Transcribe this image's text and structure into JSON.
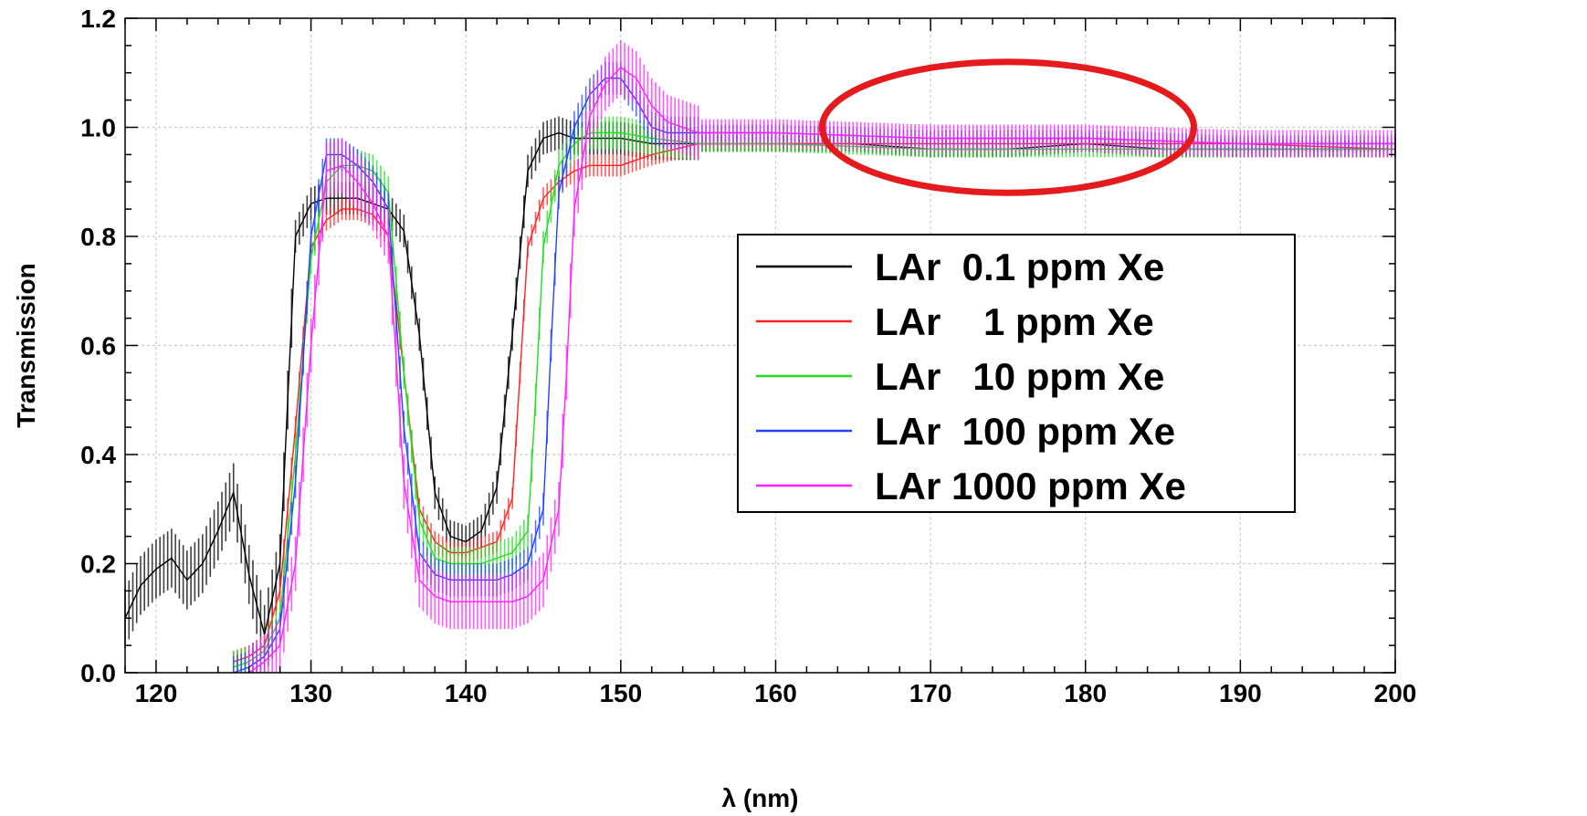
{
  "chart_data": {
    "type": "line",
    "title": "",
    "xlabel": "λ (nm)",
    "ylabel": "Transmission",
    "xlim": [
      118,
      200
    ],
    "ylim": [
      0.0,
      1.2
    ],
    "xticks": [
      120,
      130,
      140,
      150,
      160,
      170,
      180,
      190,
      200
    ],
    "xtick_labels": [
      "120",
      "130",
      "140",
      "150",
      "160",
      "170",
      "180",
      "190",
      "200"
    ],
    "yticks": [
      0.0,
      0.2,
      0.4,
      0.6,
      0.8,
      1.0,
      1.2
    ],
    "ytick_labels": [
      "0.0",
      "0.2",
      "0.4",
      "0.6",
      "0.8",
      "1.0",
      "1.2"
    ],
    "grid": true,
    "legend_position": "center-right",
    "annotation": {
      "shape": "ellipse",
      "color": "#e41a1c",
      "x_range": [
        163,
        187
      ],
      "y_range": [
        0.88,
        1.12
      ]
    },
    "series": [
      {
        "name": "LAr  0.1 ppm Xe",
        "color": "#000000",
        "error": 0.03,
        "x": [
          118,
          119,
          120,
          121,
          122,
          123,
          124,
          125,
          126,
          127,
          128,
          128.5,
          129,
          130,
          131,
          132,
          133,
          134,
          135,
          136,
          137,
          138,
          139,
          140,
          141,
          142,
          143,
          144,
          145,
          146,
          147,
          148,
          150,
          152,
          155,
          160,
          165,
          170,
          175,
          180,
          185,
          190,
          195,
          200
        ],
        "y": [
          0.1,
          0.16,
          0.19,
          0.21,
          0.17,
          0.2,
          0.26,
          0.33,
          0.18,
          0.07,
          0.2,
          0.5,
          0.8,
          0.86,
          0.87,
          0.87,
          0.87,
          0.86,
          0.85,
          0.81,
          0.62,
          0.33,
          0.25,
          0.24,
          0.26,
          0.34,
          0.62,
          0.92,
          0.98,
          0.99,
          0.98,
          0.98,
          0.98,
          0.97,
          0.97,
          0.97,
          0.97,
          0.96,
          0.96,
          0.97,
          0.96,
          0.96,
          0.96,
          0.96
        ]
      },
      {
        "name": "LAr    1 ppm Xe",
        "color": "#ff2222",
        "error": 0.02,
        "x": [
          125,
          126,
          127,
          128,
          129,
          130,
          131,
          132,
          133,
          134,
          135,
          136,
          137,
          138,
          139,
          140,
          141,
          142,
          143,
          143.5,
          144,
          145,
          146,
          147,
          148,
          150,
          152,
          155,
          160,
          170,
          180,
          190,
          200
        ],
        "y": [
          0.02,
          0.03,
          0.05,
          0.15,
          0.45,
          0.78,
          0.83,
          0.85,
          0.85,
          0.84,
          0.8,
          0.55,
          0.3,
          0.24,
          0.22,
          0.22,
          0.23,
          0.24,
          0.32,
          0.55,
          0.78,
          0.87,
          0.9,
          0.92,
          0.93,
          0.93,
          0.95,
          0.97,
          0.97,
          0.97,
          0.97,
          0.97,
          0.96
        ]
      },
      {
        "name": "LAr   10 ppm Xe",
        "color": "#22dd22",
        "error": 0.03,
        "x": [
          125,
          126,
          127,
          128,
          129,
          130,
          131,
          132,
          133,
          134,
          135,
          136,
          137,
          138,
          139,
          140,
          141,
          142,
          143,
          144,
          144.5,
          145,
          146,
          147,
          148,
          150,
          152,
          155,
          160,
          170,
          180,
          190,
          200
        ],
        "y": [
          0.01,
          0.02,
          0.04,
          0.1,
          0.4,
          0.76,
          0.9,
          0.93,
          0.93,
          0.92,
          0.88,
          0.55,
          0.28,
          0.21,
          0.2,
          0.2,
          0.2,
          0.21,
          0.22,
          0.26,
          0.5,
          0.78,
          0.93,
          0.97,
          0.99,
          0.99,
          0.98,
          0.97,
          0.97,
          0.96,
          0.96,
          0.96,
          0.96
        ]
      },
      {
        "name": "LAr  100 ppm Xe",
        "color": "#2244ff",
        "error": 0.03,
        "x": [
          125,
          126,
          127,
          128,
          129,
          130,
          131,
          132,
          133,
          134,
          135,
          136,
          137,
          138,
          139,
          140,
          141,
          142,
          143,
          144,
          145,
          145.5,
          146,
          147,
          148,
          149,
          150,
          151,
          152,
          153,
          155,
          160,
          170,
          180,
          190,
          200
        ],
        "y": [
          0.0,
          0.01,
          0.03,
          0.08,
          0.35,
          0.8,
          0.95,
          0.95,
          0.93,
          0.9,
          0.85,
          0.45,
          0.22,
          0.18,
          0.17,
          0.17,
          0.17,
          0.17,
          0.18,
          0.2,
          0.3,
          0.6,
          0.88,
          1.0,
          1.06,
          1.09,
          1.09,
          1.05,
          1.0,
          0.99,
          0.99,
          0.99,
          0.98,
          0.98,
          0.97,
          0.97
        ]
      },
      {
        "name": "LAr 1000 ppm Xe",
        "color": "#ff22ff",
        "error": 0.05,
        "x": [
          126,
          127,
          128,
          129,
          130,
          131,
          132,
          133,
          134,
          135,
          136,
          137,
          138,
          139,
          140,
          141,
          142,
          143,
          144,
          145,
          146,
          146.5,
          147,
          148,
          149,
          150,
          151,
          152,
          153,
          155,
          160,
          170,
          180,
          190,
          200
        ],
        "y": [
          0.0,
          0.02,
          0.05,
          0.2,
          0.6,
          0.92,
          0.93,
          0.9,
          0.86,
          0.8,
          0.35,
          0.17,
          0.14,
          0.13,
          0.13,
          0.13,
          0.13,
          0.13,
          0.14,
          0.17,
          0.3,
          0.55,
          0.85,
          1.02,
          1.08,
          1.11,
          1.09,
          1.04,
          1.01,
          0.99,
          0.99,
          0.98,
          0.98,
          0.97,
          0.97
        ]
      }
    ]
  }
}
